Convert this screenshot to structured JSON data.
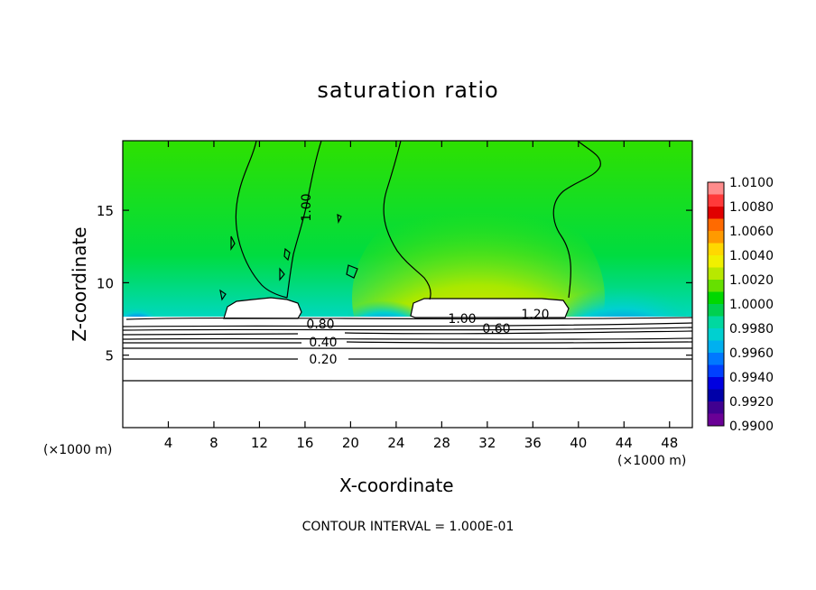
{
  "chart_data": {
    "type": "heatmap",
    "title": "saturation ratio",
    "xlabel": "X-coordinate",
    "ylabel": "Z-coordinate",
    "x_unit": "(×1000 m)",
    "footer": "CONTOUR INTERVAL = 1.000E-01",
    "xlim": [
      0,
      50
    ],
    "ylim": [
      0,
      19.8
    ],
    "x_ticks": [
      4,
      8,
      12,
      16,
      20,
      24,
      28,
      32,
      36,
      40,
      44,
      48
    ],
    "y_ticks": [
      5,
      10,
      15
    ],
    "colorbar": {
      "ticks": [
        "1.0100",
        "1.0080",
        "1.0060",
        "1.0040",
        "1.0020",
        "1.0000",
        "0.9980",
        "0.9960",
        "0.9940",
        "0.9920",
        "0.9900"
      ],
      "colors": [
        "#ff8c8c",
        "#ff3a3a",
        "#e00000",
        "#ff6a00",
        "#ff9a00",
        "#ffd800",
        "#f0f000",
        "#b8e800",
        "#66e000",
        "#00d800",
        "#00d050",
        "#00d8a0",
        "#00d0d0",
        "#00b0f0",
        "#0078ff",
        "#0040ff",
        "#0000e0",
        "#0000a8",
        "#400090",
        "#6a0096"
      ]
    },
    "contour_labels": [
      {
        "text": "1.00",
        "x": 16.0,
        "z": 15.1
      },
      {
        "text": "0.80",
        "x": 17.1,
        "z": 7.2
      },
      {
        "text": "0.60",
        "x": 32.8,
        "z": 7.1
      },
      {
        "text": "0.40",
        "x": 17.6,
        "z": 5.9
      },
      {
        "text": "0.20",
        "x": 17.6,
        "z": 4.8
      },
      {
        "text": "1.00",
        "x": 29.3,
        "z": 7.8
      },
      {
        "text": "1.20",
        "x": 35.8,
        "z": 7.9
      }
    ],
    "legend": "right"
  }
}
